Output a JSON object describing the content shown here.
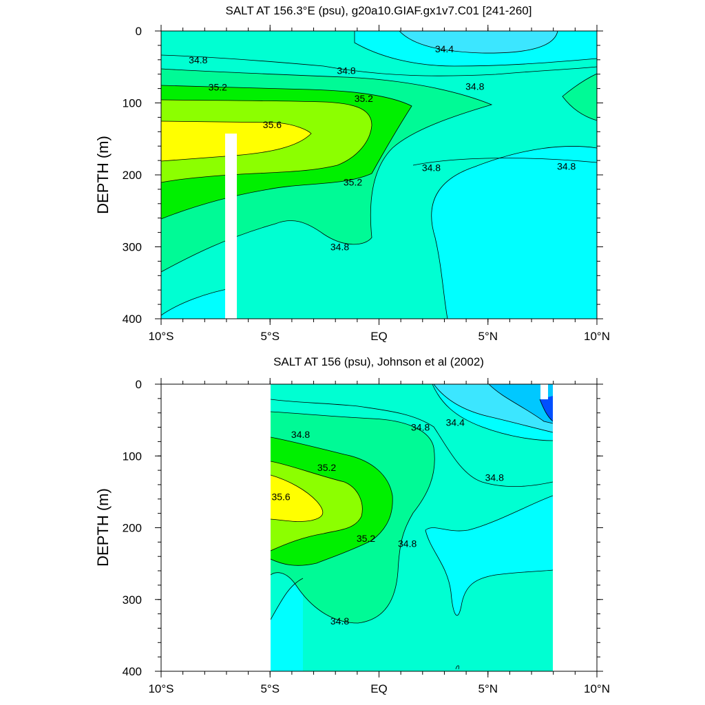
{
  "chart_data": [
    {
      "type": "contour",
      "title": "SALT AT 156.3°E (psu), g20a10.GIAF.gx1v7.C01 [241-260]",
      "ylabel": "DEPTH (m)",
      "xlim": [
        -10,
        10
      ],
      "ylim": [
        0,
        400
      ],
      "y_reversed": true,
      "x_ticks": [
        "10°S",
        "5°S",
        "EQ",
        "5°N",
        "10°N"
      ],
      "y_ticks": [
        "0",
        "100",
        "200",
        "300",
        "400"
      ],
      "data_extent_x": [
        -10,
        10
      ],
      "levels": [
        {
          "value": 34.4,
          "color": "#3ce6ff"
        },
        {
          "value": 34.6,
          "color": "#00ffff"
        },
        {
          "value": 34.8,
          "color": "#00ffd2"
        },
        {
          "value": 35.0,
          "color": "#00fa96"
        },
        {
          "value": 35.2,
          "color": "#00f000"
        },
        {
          "value": 35.4,
          "color": "#8cff00"
        },
        {
          "value": 35.6,
          "color": "#ffff00"
        }
      ],
      "contour_labels": [
        {
          "text": "34.4",
          "x": 3.0,
          "y": 25
        },
        {
          "text": "34.8",
          "x": -8.3,
          "y": 40
        },
        {
          "text": "34.8",
          "x": -1.5,
          "y": 55
        },
        {
          "text": "34.8",
          "x": 4.4,
          "y": 77
        },
        {
          "text": "35.2",
          "x": -7.4,
          "y": 78
        },
        {
          "text": "35.2",
          "x": -0.7,
          "y": 94
        },
        {
          "text": "35.6",
          "x": -4.9,
          "y": 130
        },
        {
          "text": "34.8",
          "x": 2.4,
          "y": 190
        },
        {
          "text": "34.8",
          "x": 8.6,
          "y": 188
        },
        {
          "text": "35.2",
          "x": -1.2,
          "y": 210
        },
        {
          "text": "34.8",
          "x": -1.8,
          "y": 300
        }
      ]
    },
    {
      "type": "contour",
      "title": "SALT AT 156 (psu), Johnson et al (2002)",
      "ylabel": "DEPTH (m)",
      "xlim": [
        -10,
        10
      ],
      "ylim": [
        0,
        400
      ],
      "y_reversed": true,
      "x_ticks": [
        "10°S",
        "5°S",
        "EQ",
        "5°N",
        "10°N"
      ],
      "y_ticks": [
        "0",
        "100",
        "200",
        "300",
        "400"
      ],
      "data_extent_x": [
        -5,
        8
      ],
      "levels": [
        {
          "value": 34.0,
          "color": "#0050ff"
        },
        {
          "value": 34.2,
          "color": "#00c8ff"
        },
        {
          "value": 34.4,
          "color": "#3ce6ff"
        },
        {
          "value": 34.6,
          "color": "#00ffff"
        },
        {
          "value": 34.8,
          "color": "#00ffd2"
        },
        {
          "value": 35.0,
          "color": "#00fa96"
        },
        {
          "value": 35.2,
          "color": "#00f000"
        },
        {
          "value": 35.4,
          "color": "#8cff00"
        },
        {
          "value": 35.6,
          "color": "#ffff00"
        }
      ],
      "contour_labels": [
        {
          "text": "34.8",
          "x": -3.6,
          "y": 70
        },
        {
          "text": "34.8",
          "x": 1.9,
          "y": 60
        },
        {
          "text": "34.4",
          "x": 3.5,
          "y": 53
        },
        {
          "text": "35.2",
          "x": -2.4,
          "y": 116
        },
        {
          "text": "34.8",
          "x": 5.3,
          "y": 130
        },
        {
          "text": "35.6",
          "x": -4.5,
          "y": 157
        },
        {
          "text": "35.2",
          "x": -0.6,
          "y": 215
        },
        {
          "text": "34.8",
          "x": 1.3,
          "y": 222
        },
        {
          "text": "34.8",
          "x": -1.8,
          "y": 330
        }
      ]
    }
  ]
}
